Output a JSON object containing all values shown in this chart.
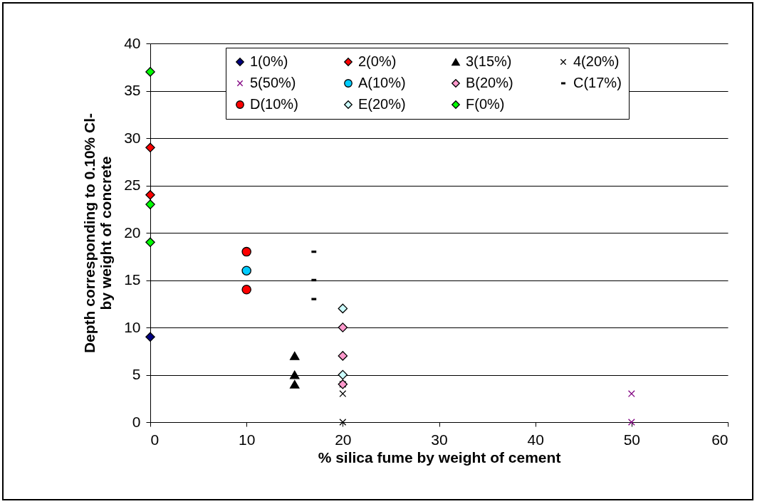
{
  "chart_data": {
    "type": "scatter",
    "xlabel": "% silica fume by weight of cement",
    "ylabel": "Depth corresponding to 0.10% Cl-\nby weight of concrete",
    "xlim": [
      0,
      60
    ],
    "xticks": [
      0,
      10,
      20,
      30,
      40,
      50,
      60
    ],
    "ylim": [
      0,
      40
    ],
    "yticks": [
      0,
      5,
      10,
      15,
      20,
      25,
      30,
      35,
      40
    ],
    "grid": "y",
    "legend": "top",
    "series": [
      {
        "name": "1(0%)",
        "color": "#000080",
        "marker": "diamond",
        "x": [
          0
        ],
        "values": [
          9
        ]
      },
      {
        "name": "2(0%)",
        "color": "#ff0000",
        "marker": "diamond",
        "x": [
          0,
          0
        ],
        "values": [
          29,
          24
        ]
      },
      {
        "name": "3(15%)",
        "color": "#000000",
        "marker": "triangle",
        "x": [
          15,
          15,
          15
        ],
        "values": [
          7,
          5,
          4
        ]
      },
      {
        "name": "4(20%)",
        "color": "#000000",
        "marker": "cross",
        "x": [
          20,
          20,
          20
        ],
        "values": [
          4,
          3,
          0
        ]
      },
      {
        "name": "5(50%)",
        "color": "#800080",
        "marker": "cross",
        "x": [
          50,
          50
        ],
        "values": [
          3,
          0
        ]
      },
      {
        "name": "A(10%)",
        "color": "#00ccff",
        "marker": "circle",
        "x": [
          10
        ],
        "values": [
          16
        ]
      },
      {
        "name": "B(20%)",
        "color": "#ff99cc",
        "marker": "diamond",
        "x": [
          20,
          20,
          20
        ],
        "values": [
          10,
          7,
          4
        ]
      },
      {
        "name": "C(17%)",
        "color": "#000000",
        "marker": "square",
        "x": [
          17,
          17,
          17
        ],
        "values": [
          18,
          15,
          13
        ]
      },
      {
        "name": "D(10%)",
        "color": "#ff0000",
        "marker": "circle",
        "x": [
          10,
          10
        ],
        "values": [
          18,
          14
        ]
      },
      {
        "name": "E(20%)",
        "color": "#ccffff",
        "marker": "diamond",
        "x": [
          20,
          20
        ],
        "values": [
          12,
          5
        ]
      },
      {
        "name": "F(0%)",
        "color": "#00ff00",
        "marker": "diamond",
        "x": [
          0,
          0,
          0
        ],
        "values": [
          37,
          23,
          19
        ]
      }
    ]
  }
}
